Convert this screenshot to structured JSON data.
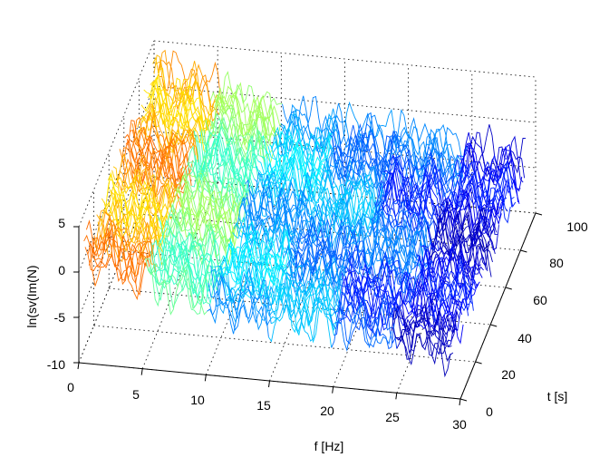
{
  "chart_data": {
    "type": "surface-waterfall",
    "title": "",
    "xlabel": "f [Hz]",
    "ylabel": "t [s]",
    "zlabel": "ln(sv(Im(N)",
    "xlim": [
      0,
      30
    ],
    "ylim": [
      0,
      100
    ],
    "zlim": [
      -10,
      5
    ],
    "xticks": [
      "0",
      "5",
      "10",
      "15",
      "20",
      "25",
      "30"
    ],
    "yticks": [
      "0",
      "20",
      "40",
      "60",
      "80",
      "100"
    ],
    "zticks": [
      "-10",
      "-5",
      "0",
      "5"
    ],
    "grid": true,
    "colormap": "jet",
    "colors": [
      "#00008f",
      "#0000ff",
      "#00ffff",
      "#ffff00",
      "#ff0000",
      "#800000"
    ],
    "series_count": 60,
    "f_max": 29.3,
    "profile": {
      "f": [
        0.5,
        2,
        4,
        6,
        8,
        10,
        12,
        15,
        20,
        22,
        25,
        29.3
      ],
      "mean_ln_sv": [
        1.8,
        1.4,
        0.6,
        -0.2,
        -1.0,
        -2.0,
        -2.4,
        -2.6,
        -2.8,
        -3.2,
        -3.9,
        -4.4
      ]
    }
  }
}
